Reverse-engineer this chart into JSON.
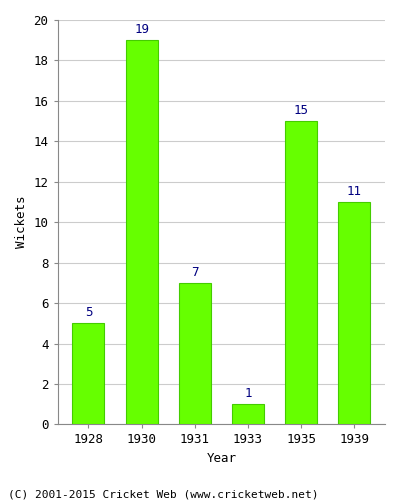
{
  "years": [
    "1928",
    "1930",
    "1931",
    "1933",
    "1935",
    "1939"
  ],
  "wickets": [
    5,
    19,
    7,
    1,
    15,
    11
  ],
  "bar_color": "#66ff00",
  "bar_edge_color": "#44cc00",
  "label_color": "#000080",
  "ylabel": "Wickets",
  "xlabel": "Year",
  "ylim": [
    0,
    20
  ],
  "yticks": [
    0,
    2,
    4,
    6,
    8,
    10,
    12,
    14,
    16,
    18,
    20
  ],
  "footnote": "(C) 2001-2015 Cricket Web (www.cricketweb.net)",
  "bg_color": "#ffffff",
  "plot_bg_color": "#ffffff",
  "label_fontsize": 9,
  "axis_fontsize": 9,
  "footnote_fontsize": 8,
  "bar_width": 0.6
}
